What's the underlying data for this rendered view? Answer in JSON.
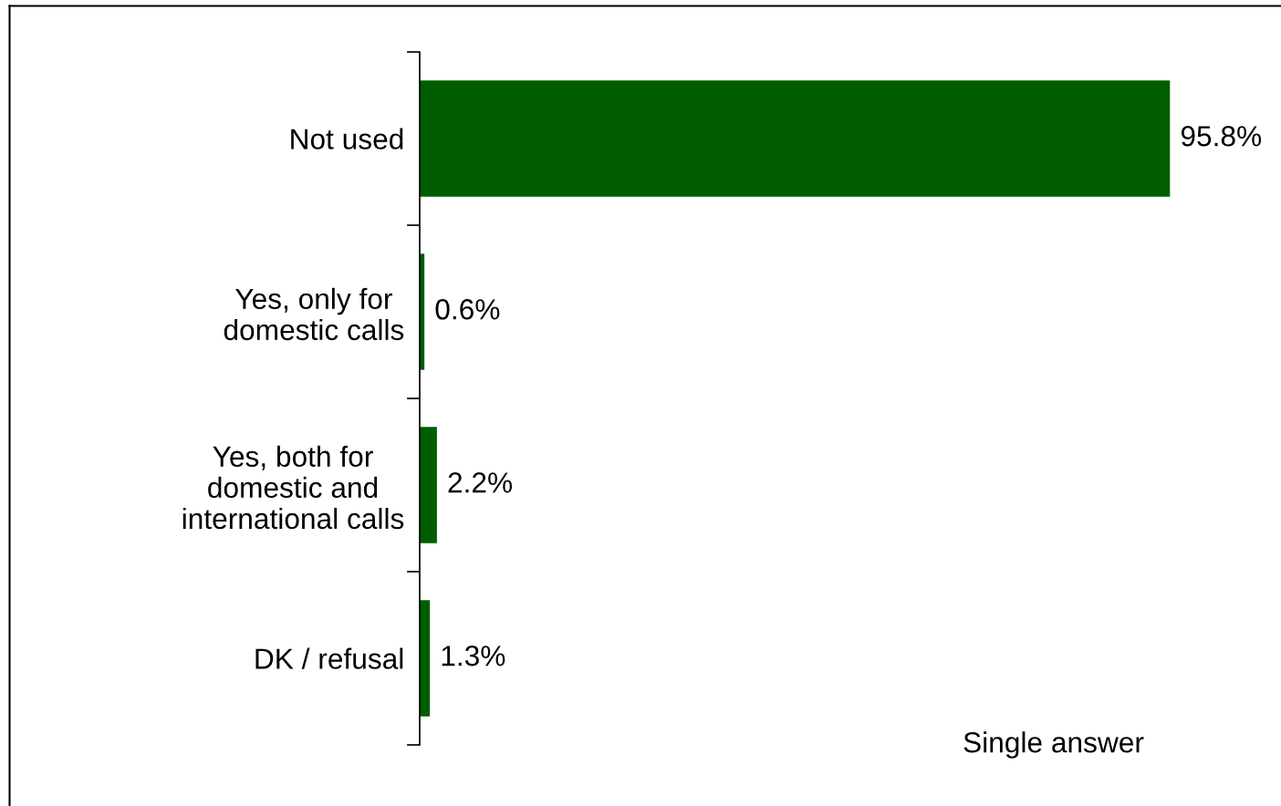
{
  "chart_data": {
    "type": "bar",
    "orientation": "horizontal",
    "categories": [
      "Not used",
      "Yes, only for\ndomestic calls",
      "Yes, both for\ndomestic and\ninternational calls",
      "DK / refusal"
    ],
    "values": [
      95.8,
      0.6,
      2.2,
      1.3
    ],
    "value_labels": [
      "95.8%",
      "0.6%",
      "2.2%",
      "1.3%"
    ],
    "color": "#005e00",
    "annotations": [
      "Single answer"
    ]
  }
}
